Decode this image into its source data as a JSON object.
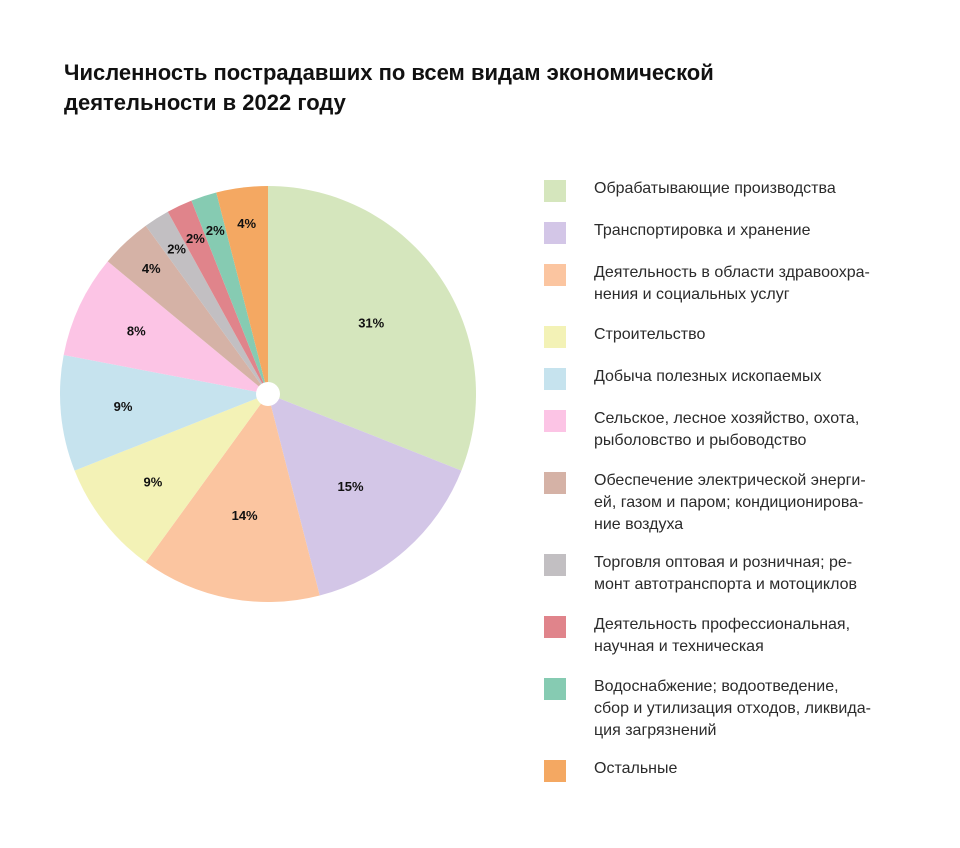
{
  "chart_data": {
    "type": "pie",
    "title": "Численность пострадавших по всем видам экономической деятельности в 2022 году",
    "legend_position": "right",
    "slices": [
      {
        "label": "Обрабатывающие производства",
        "legend_text": "Обрабатывающие производства",
        "value": 31,
        "value_label": "31%",
        "color": "#d5e6bd"
      },
      {
        "label": "Транспортировка и хранение",
        "legend_text": "Транспортировка и хранение",
        "value": 15,
        "value_label": "15%",
        "color": "#d3c6e7"
      },
      {
        "label": "Деятельность в области здравоохранения и социальных услуг",
        "legend_text": "Деятельность в области здравоохра-\nнения и социальных услуг",
        "value": 14,
        "value_label": "14%",
        "color": "#fbc5a0"
      },
      {
        "label": "Строительство",
        "legend_text": "Строительство",
        "value": 9,
        "value_label": "9%",
        "color": "#f3f2b6"
      },
      {
        "label": "Добыча полезных ископаемых",
        "legend_text": "Добыча полезных ископаемых",
        "value": 9,
        "value_label": "9%",
        "color": "#c6e3ee"
      },
      {
        "label": "Сельское, лесное хозяйство, охота, рыболовство и рыбоводство",
        "legend_text": "Сельское, лесное хозяйство, охота,\nрыболовство и рыбоводство",
        "value": 8,
        "value_label": "8%",
        "color": "#fcc4e5"
      },
      {
        "label": "Обеспечение электрической энергией, газом и паром; кондиционирование воздуха",
        "legend_text": "Обеспечение электрической энерги-\nей, газом и паром; кондиционирова-\nние воздуха",
        "value": 4,
        "value_label": "4%",
        "color": "#d5b2a6"
      },
      {
        "label": "Торговля оптовая и розничная; ремонт автотранспорта и мотоциклов",
        "legend_text": "Торговля оптовая и розничная; ре-\nмонт автотранспорта и мотоциклов",
        "value": 2,
        "value_label": "2%",
        "color": "#c2bfc2"
      },
      {
        "label": "Деятельность профессиональная, научная и техническая",
        "legend_text": "Деятельность профессиональная,\nнаучная и техническая",
        "value": 2,
        "value_label": "2%",
        "color": "#e0848b"
      },
      {
        "label": "Водоснабжение; водоотведение, сбор и утилизация отходов, ликвидация загрязнений",
        "legend_text": "Водоснабжение; водоотведение,\nсбор и утилизация отходов, ликвида-\nция загрязнений",
        "value": 2,
        "value_label": "2%",
        "color": "#86cbb2"
      },
      {
        "label": "Остальные",
        "legend_text": "Остальные",
        "value": 4,
        "value_label": "4%",
        "color": "#f4a862"
      }
    ]
  }
}
